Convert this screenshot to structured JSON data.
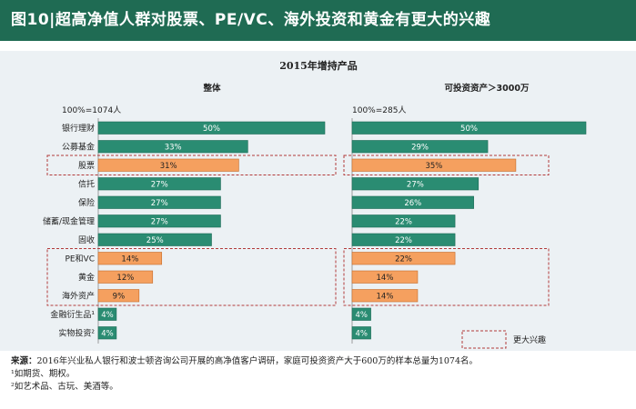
{
  "header": {
    "title": "图10|超高净值人群对股票、PE/VC、海外投资和黄金有更大的兴趣"
  },
  "chart_data": {
    "type": "bar",
    "title": "2015年增持产品",
    "colors": {
      "default": "#2a8c72",
      "highlight": "#f5a05f",
      "dash": "#b23a3a",
      "title_bar": "#1f6b53"
    },
    "categories": [
      "银行理财",
      "公募基金",
      "股票",
      "信托",
      "保险",
      "储蓄/现金管理",
      "固收",
      "PE和VC",
      "黄金",
      "海外资产",
      "金融衍生品¹",
      "实物投资²"
    ],
    "highlight": [
      false,
      false,
      true,
      false,
      false,
      false,
      false,
      true,
      true,
      true,
      false,
      false
    ],
    "panels": [
      {
        "name": "整体",
        "base": "100%=1074人",
        "values": [
          50,
          33,
          31,
          27,
          27,
          27,
          25,
          14,
          12,
          9,
          4,
          4
        ],
        "labels": [
          "50%",
          "33%",
          "31%",
          "27%",
          "27%",
          "27%",
          "25%",
          "14%",
          "12%",
          "9%",
          "4%",
          "4%"
        ]
      },
      {
        "name": "可投资资产＞3000万",
        "base": "100%=285人",
        "values": [
          50,
          29,
          35,
          27,
          26,
          22,
          22,
          22,
          14,
          14,
          4,
          4
        ],
        "labels": [
          "50%",
          "29%",
          "35%",
          "27%",
          "26%",
          "22%",
          "22%",
          "22%",
          "14%",
          "14%",
          "4%",
          "4%"
        ]
      }
    ],
    "legend": {
      "label": "更大兴趣"
    }
  },
  "source": {
    "label": "来源：",
    "text": "2016年兴业私人银行和波士顿咨询公司开展的高净值客户调研，家庭可投资资产大于600万的样本总量为1074名。",
    "note1": "¹如期货、期权。",
    "note2": "²如艺术品、古玩、美酒等。"
  }
}
